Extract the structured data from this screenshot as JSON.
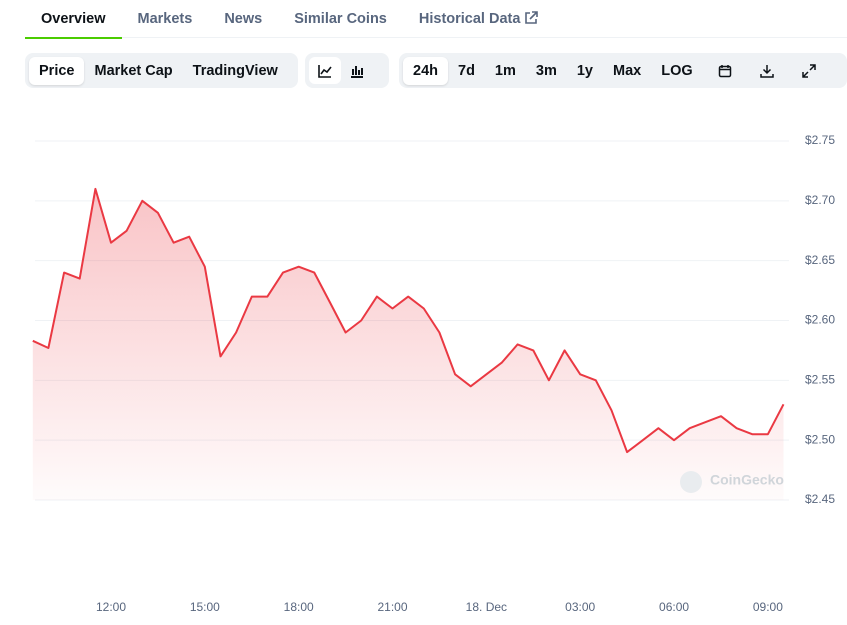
{
  "tabs": [
    "Overview",
    "Markets",
    "News",
    "Similar Coins",
    "Historical Data"
  ],
  "toolbar": {
    "view_buttons": [
      "Price",
      "Market Cap",
      "TradingView"
    ],
    "range_buttons": [
      "24h",
      "7d",
      "1m",
      "3m",
      "1y",
      "Max",
      "LOG"
    ]
  },
  "watermark": "CoinGecko",
  "chart_data": {
    "type": "line",
    "categories": [
      null,
      null,
      null,
      null,
      null,
      "12:00",
      null,
      null,
      null,
      null,
      null,
      "15:00",
      null,
      null,
      null,
      null,
      null,
      "18:00",
      null,
      null,
      null,
      null,
      null,
      "21:00",
      null,
      null,
      null,
      null,
      null,
      "18. Dec",
      null,
      null,
      null,
      null,
      null,
      "03:00",
      null,
      null,
      null,
      null,
      null,
      "06:00",
      null,
      null,
      null,
      null,
      null,
      "09:00",
      null
    ],
    "series": [
      {
        "name": "Price",
        "color": "#ea3943",
        "values": [
          2.583,
          2.577,
          2.64,
          2.635,
          2.71,
          2.665,
          2.675,
          2.7,
          2.69,
          2.665,
          2.67,
          2.645,
          2.57,
          2.59,
          2.62,
          2.62,
          2.64,
          2.645,
          2.64,
          2.615,
          2.59,
          2.6,
          2.62,
          2.61,
          2.62,
          2.61,
          2.59,
          2.555,
          2.545,
          2.555,
          2.565,
          2.58,
          2.575,
          2.55,
          2.575,
          2.555,
          2.55,
          2.525,
          2.49,
          2.5,
          2.51,
          2.5,
          2.51,
          2.515,
          2.52,
          2.51,
          2.505,
          2.505,
          2.53
        ]
      }
    ],
    "ylim": [
      2.45,
      2.75
    ],
    "yticks": [
      {
        "value": 2.45,
        "label": "$2.45"
      },
      {
        "value": 2.5,
        "label": "$2.50"
      },
      {
        "value": 2.55,
        "label": "$2.55"
      },
      {
        "value": 2.6,
        "label": "$2.60"
      },
      {
        "value": 2.65,
        "label": "$2.65"
      },
      {
        "value": 2.7,
        "label": "$2.70"
      },
      {
        "value": 2.75,
        "label": "$2.75"
      }
    ],
    "grid": true
  }
}
